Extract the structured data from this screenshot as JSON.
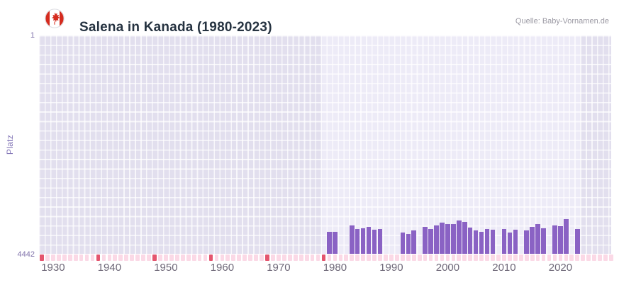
{
  "header": {
    "title": "Salena in Kanada (1980-2023)",
    "source": "Quelle: Baby-Vornamen.de",
    "flag_icon": "canada-flag-icon"
  },
  "chart": {
    "y_title": "Platz",
    "y_top_label": "1",
    "y_bottom_label": "4442"
  },
  "chart_data": {
    "type": "bar",
    "title": "Salena in Kanada (1980-2023)",
    "xlabel": "",
    "ylabel": "Platz",
    "legend": "none",
    "grid": true,
    "y_axis": {
      "min": 1,
      "max": 4442,
      "inverted": true,
      "tick_labels": [
        "1",
        "4442"
      ]
    },
    "x_axis": {
      "domain": [
        1927.5,
        2029
      ],
      "ticks": [
        1930,
        1940,
        1950,
        1960,
        1970,
        1980,
        1990,
        2000,
        2010,
        2020
      ]
    },
    "highlight_range": [
      1977.5,
      2023.5
    ],
    "milestone_years": [
      1928,
      1938,
      1948,
      1958,
      1968,
      1978
    ],
    "series": [
      {
        "name": "Platz",
        "points": [
          {
            "year": 1979,
            "rank": 3990
          },
          {
            "year": 1980,
            "rank": 4000
          },
          {
            "year": 1983,
            "rank": 3860
          },
          {
            "year": 1984,
            "rank": 3940
          },
          {
            "year": 1985,
            "rank": 3920
          },
          {
            "year": 1986,
            "rank": 3900
          },
          {
            "year": 1987,
            "rank": 3950
          },
          {
            "year": 1988,
            "rank": 3930
          },
          {
            "year": 1992,
            "rank": 4010
          },
          {
            "year": 1993,
            "rank": 4040
          },
          {
            "year": 1994,
            "rank": 3970
          },
          {
            "year": 1996,
            "rank": 3900
          },
          {
            "year": 1997,
            "rank": 3930
          },
          {
            "year": 1998,
            "rank": 3860
          },
          {
            "year": 1999,
            "rank": 3810
          },
          {
            "year": 2000,
            "rank": 3840
          },
          {
            "year": 2001,
            "rank": 3830
          },
          {
            "year": 2002,
            "rank": 3760
          },
          {
            "year": 2003,
            "rank": 3800
          },
          {
            "year": 2004,
            "rank": 3910
          },
          {
            "year": 2005,
            "rank": 3970
          },
          {
            "year": 2006,
            "rank": 4000
          },
          {
            "year": 2007,
            "rank": 3940
          },
          {
            "year": 2008,
            "rank": 3950
          },
          {
            "year": 2010,
            "rank": 3930
          },
          {
            "year": 2011,
            "rank": 4010
          },
          {
            "year": 2012,
            "rank": 3950
          },
          {
            "year": 2014,
            "rank": 3970
          },
          {
            "year": 2015,
            "rank": 3890
          },
          {
            "year": 2016,
            "rank": 3840
          },
          {
            "year": 2017,
            "rank": 3920
          },
          {
            "year": 2019,
            "rank": 3860
          },
          {
            "year": 2020,
            "rank": 3880
          },
          {
            "year": 2021,
            "rank": 3740
          },
          {
            "year": 2023,
            "rank": 3940
          }
        ]
      }
    ],
    "colors": {
      "bar": "#8a62c4",
      "plot_bg": "#e2dfee",
      "highlight_bg": "#edebf7",
      "strip_cell": "#fbd9e6",
      "strip_milestone": "#e4556e",
      "flag_red": "#d52b1e",
      "title_text": "#263341",
      "axis_text": "#6e6878"
    }
  }
}
